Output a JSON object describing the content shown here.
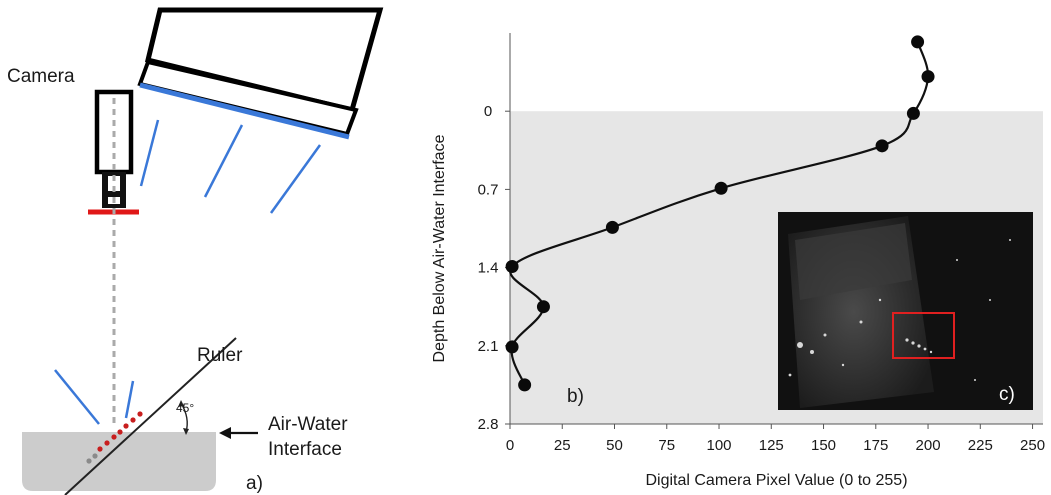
{
  "colors": {
    "light_blue": "#3a78d8",
    "filter_red": "#e01818",
    "dots_red": "#c81e1e",
    "water_gray": "#cccccc",
    "plot_bg_gray": "#e6e6e6",
    "inset_box_red": "#e02020"
  },
  "diagram": {
    "camera_label": "Camera",
    "ruler_label": "Ruler",
    "angle_label": "45°",
    "interface_label_line1": "Air-Water",
    "interface_label_line2": "Interface",
    "panel_label": "a)"
  },
  "chart_data": {
    "type": "line",
    "panel_label": "b)",
    "title": "",
    "xlabel": "Digital Camera Pixel Value (0 to 255)",
    "ylabel": "Depth Below Air-Water Interface",
    "xlim": [
      0,
      255
    ],
    "ylim": [
      2.8,
      -0.7
    ],
    "y_inverted": true,
    "x_ticks": [
      "0",
      "25",
      "50",
      "75",
      "100",
      "125",
      "150",
      "175",
      "200",
      "225",
      "250"
    ],
    "y_ticks": [
      "0",
      "0.7",
      "1.4",
      "2.1",
      "2.8"
    ],
    "grid": false,
    "shaded_region": {
      "from_depth": 0,
      "to_depth": 2.8,
      "color": "#e6e6e6"
    },
    "series": [
      {
        "points": [
          {
            "x": 195,
            "y": -0.62
          },
          {
            "x": 200,
            "y": -0.31
          },
          {
            "x": 193,
            "y": 0.02
          },
          {
            "x": 178,
            "y": 0.31
          },
          {
            "x": 101,
            "y": 0.69
          },
          {
            "x": 49,
            "y": 1.04
          },
          {
            "x": 1,
            "y": 1.39
          },
          {
            "x": 16,
            "y": 1.75
          },
          {
            "x": 1,
            "y": 2.11
          },
          {
            "x": 7,
            "y": 2.45
          }
        ]
      }
    ]
  },
  "inset": {
    "panel_label": "c)"
  }
}
